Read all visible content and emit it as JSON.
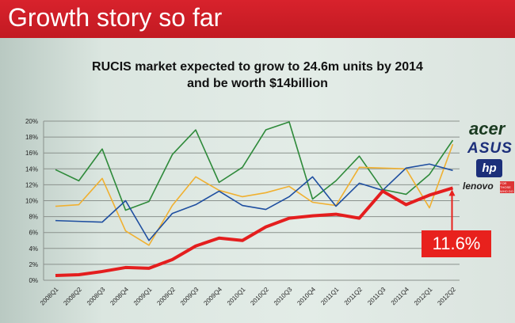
{
  "slide": {
    "title": "Growth story so far",
    "subtitle_line1": "RUCIS market expected to grow to 24.6m units by 2014",
    "subtitle_line2": "and be worth $14billion",
    "callout": "11.6%"
  },
  "legend_logos": [
    "acer",
    "ASUS",
    "hp",
    "lenovo"
  ],
  "lenovo_tagline": "FOR THOSE WHO DO",
  "chart_data": {
    "type": "line",
    "title": "",
    "xlabel": "",
    "ylabel": "",
    "ylim": [
      0,
      20
    ],
    "yticks": [
      "0%",
      "2%",
      "4%",
      "6%",
      "8%",
      "10%",
      "12%",
      "14%",
      "16%",
      "18%",
      "20%"
    ],
    "grid": true,
    "legend": "right (brand logos)",
    "categories": [
      "2008Q1",
      "2008Q2",
      "2008Q3",
      "2008Q4",
      "2009Q1",
      "2009Q2",
      "2009Q3",
      "2009Q4",
      "2010Q1",
      "2010Q2",
      "2010Q3",
      "2010Q4",
      "2011Q1",
      "2011Q2",
      "2011Q3",
      "2011Q4",
      "2012Q1",
      "2012Q2"
    ],
    "series": [
      {
        "name": "green",
        "color": "#2e8a3a",
        "values": [
          13.9,
          12.5,
          16.5,
          8.8,
          9.9,
          15.8,
          18.9,
          12.3,
          14.2,
          18.9,
          19.9,
          10.2,
          12.5,
          15.6,
          11.4,
          10.8,
          13.3,
          17.6
        ]
      },
      {
        "name": "yellow",
        "color": "#f0b030",
        "values": [
          9.3,
          9.5,
          12.8,
          6.2,
          4.4,
          9.4,
          13.0,
          11.3,
          10.5,
          11.0,
          11.8,
          9.8,
          9.4,
          14.2,
          14.1,
          14.0,
          9.1,
          17.1
        ]
      },
      {
        "name": "blue",
        "color": "#1f4fa0",
        "values": [
          7.5,
          7.4,
          7.3,
          10.0,
          5.0,
          8.4,
          9.5,
          11.2,
          9.4,
          8.9,
          10.5,
          13.0,
          9.3,
          12.2,
          11.3,
          14.1,
          14.6,
          13.8
        ]
      },
      {
        "name": "lenovo",
        "color": "#e41e1e",
        "values": [
          0.6,
          0.7,
          1.1,
          1.6,
          1.5,
          2.6,
          4.3,
          5.3,
          5.0,
          6.7,
          7.8,
          8.1,
          8.3,
          7.8,
          11.2,
          9.5,
          10.7,
          11.6
        ]
      }
    ]
  }
}
